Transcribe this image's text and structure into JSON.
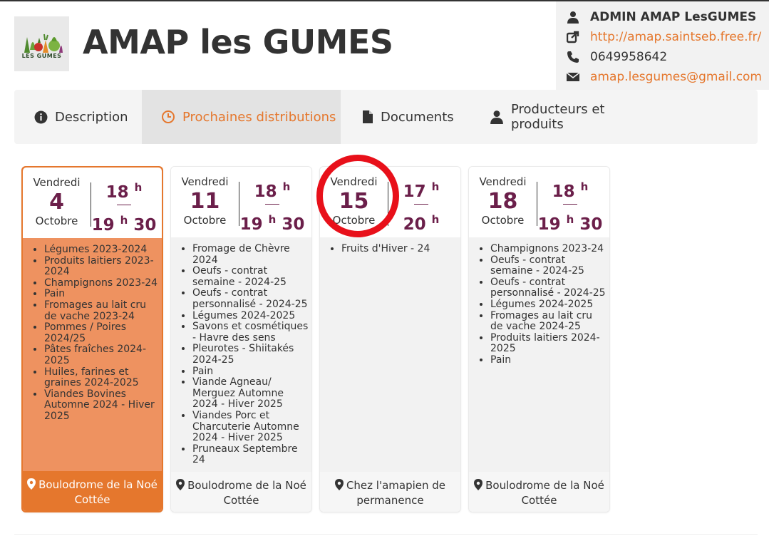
{
  "header": {
    "title": "AMAP les GUMES",
    "logo_text": "LES GUMES"
  },
  "contact": {
    "name": "ADMIN AMAP LesGUMES",
    "website": "http://amap.saintseb.free.fr/",
    "phone": "0649958642",
    "email": "amap.lesgumes@gmail.com"
  },
  "tabs": [
    {
      "label": "Description",
      "icon": "info-circle-icon"
    },
    {
      "label": "Prochaines distributions",
      "icon": "clock-icon",
      "active": true
    },
    {
      "label": "Documents",
      "icon": "document-icon"
    },
    {
      "label": "Producteurs et produits",
      "icon": "user-icon"
    }
  ],
  "distributions": [
    {
      "day_name": "Vendredi",
      "day": "4",
      "month": "Octobre",
      "start_h": "18",
      "start_m": "",
      "end_h": "19",
      "end_m": "30",
      "products": [
        "Légumes 2023-2024",
        "Produits laitiers 2023-2024",
        "Champignons 2023-24",
        "Pain",
        "Fromages au lait cru de vache 2023-24",
        "Pommes / Poires 2024/25",
        "Pâtes fraîches 2024-2025",
        "Huiles, farines et graines 2024-2025",
        "Viandes Bovines Automne 2024 - Hiver 2025"
      ],
      "location": "Boulodrome de la Noé Cottée",
      "active": true
    },
    {
      "day_name": "Vendredi",
      "day": "11",
      "month": "Octobre",
      "start_h": "18",
      "start_m": "",
      "end_h": "19",
      "end_m": "30",
      "products": [
        "Fromage de Chèvre 2024",
        "Oeufs - contrat semaine - 2024-25",
        "Oeufs - contrat personnalisé - 2024-25",
        "Légumes 2024-2025",
        "Savons et cosmétiques - Havre des sens",
        "Pleurotes - Shiitakés 2024-25",
        "Pain",
        "Viande Agneau/ Merguez Automne 2024 - Hiver 2025",
        "Viandes Porc et Charcuterie Automne 2024 - Hiver 2025",
        "Pruneaux Septembre 24"
      ],
      "location": "Boulodrome de la Noé Cottée"
    },
    {
      "day_name": "Vendredi",
      "day": "15",
      "month": "Octobre",
      "start_h": "17",
      "start_m": "",
      "end_h": "20",
      "end_m": "",
      "products": [
        "Fruits d'Hiver - 24"
      ],
      "location": "Chez l'amapien de permanence"
    },
    {
      "day_name": "Vendredi",
      "day": "18",
      "month": "Octobre",
      "start_h": "18",
      "start_m": "",
      "end_h": "19",
      "end_m": "30",
      "products": [
        "Champignons 2023-24",
        "Oeufs - contrat semaine - 2024-25",
        "Oeufs - contrat personnalisé - 2024-25",
        "Légumes 2024-2025",
        "Fromages au lait cru de vache 2024-25",
        "Produits laitiers 2024-2025",
        "Pain"
      ],
      "location": "Boulodrome de la Noé Cottée"
    }
  ],
  "hour_suffix": "h",
  "colors": {
    "accent": "#e5772d",
    "date": "#6b1f4a",
    "highlight_circle": "#e8101a"
  }
}
